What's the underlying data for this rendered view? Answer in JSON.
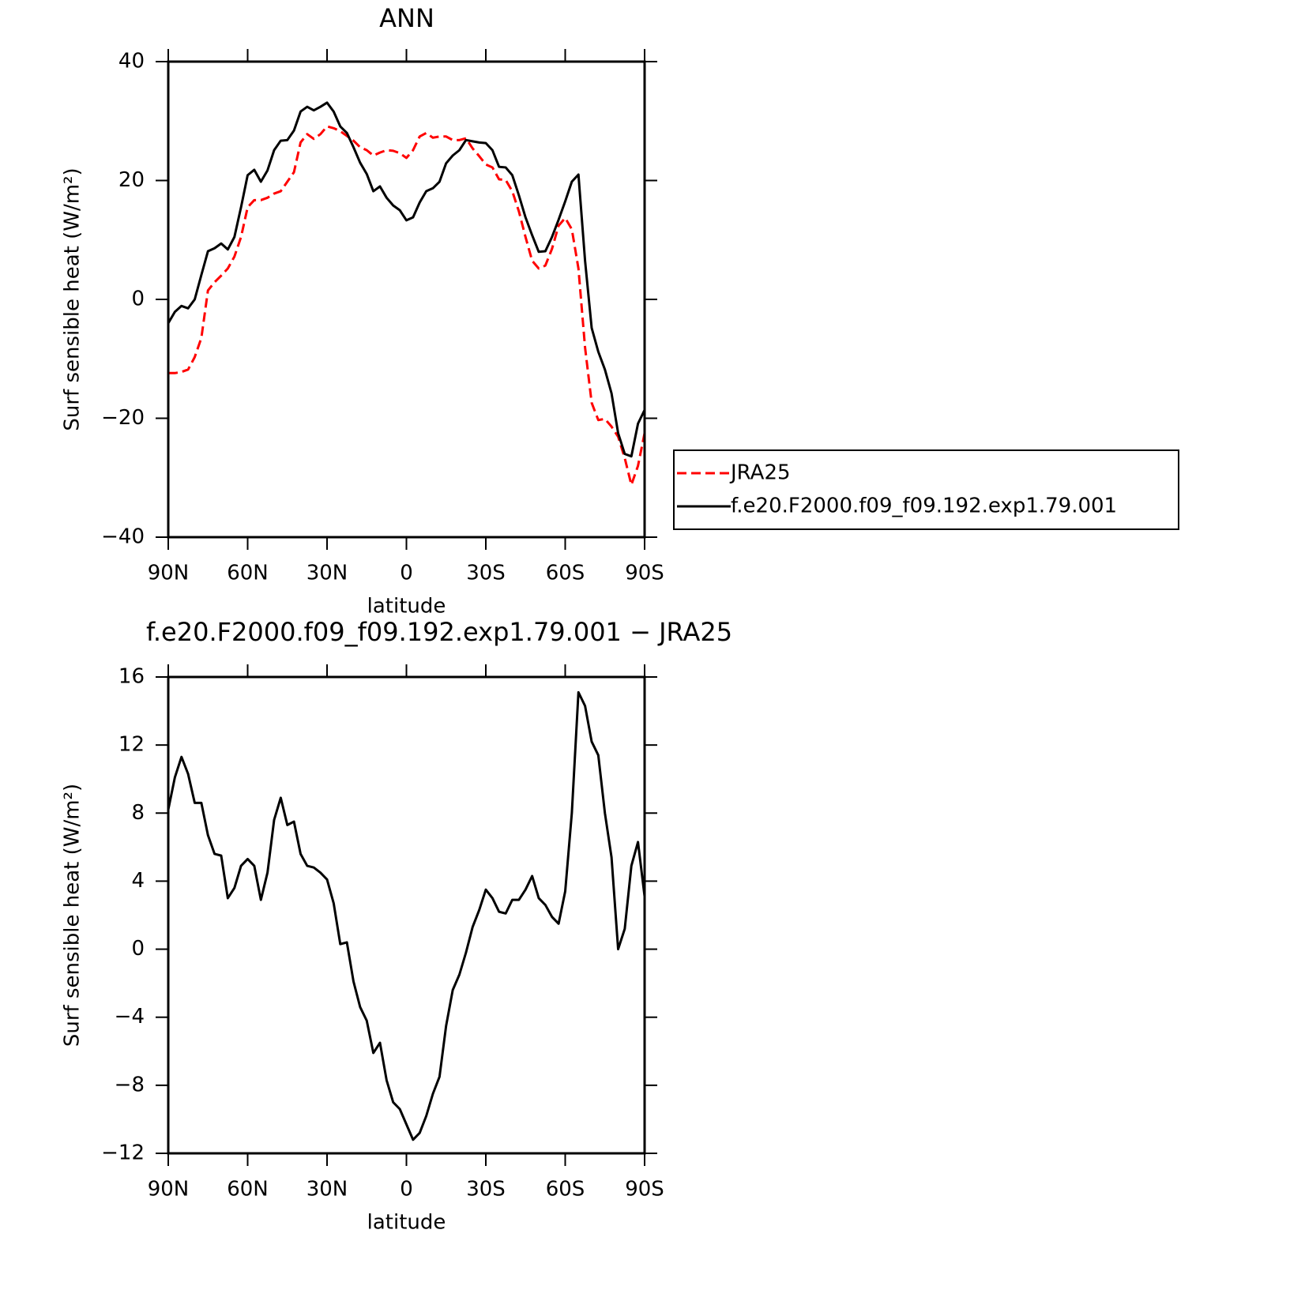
{
  "chart_data": [
    {
      "type": "line",
      "title": "ANN",
      "x_label": "latitude",
      "y_label": "Surf sensible heat (W/m²)",
      "x": [
        90,
        87.5,
        85,
        82.5,
        80,
        77.5,
        75,
        72.5,
        70,
        67.5,
        65,
        62.5,
        60,
        57.5,
        55,
        52.5,
        50,
        47.5,
        45,
        42.5,
        40,
        37.5,
        35,
        32.5,
        30,
        27.5,
        25,
        22.5,
        20,
        17.5,
        15,
        12.5,
        10,
        7.5,
        5,
        2.5,
        0,
        -2.5,
        -5,
        -7.5,
        -10,
        -12.5,
        -15,
        -17.5,
        -20,
        -22.5,
        -25,
        -27.5,
        -30,
        -32.5,
        -35,
        -37.5,
        -40,
        -42.5,
        -45,
        -47.5,
        -50,
        -52.5,
        -55,
        -57.5,
        -60,
        -62.5,
        -65,
        -67.5,
        -70,
        -72.5,
        -75,
        -77.5,
        -80,
        -82.5,
        -85,
        -87.5,
        -90
      ],
      "xlim": [
        90,
        -90
      ],
      "xticks": [
        {
          "value": 90,
          "label": "90N"
        },
        {
          "value": 60,
          "label": "60N"
        },
        {
          "value": 30,
          "label": "30N"
        },
        0,
        {
          "value": -30,
          "label": "30S"
        },
        {
          "value": -60,
          "label": "60S"
        },
        {
          "value": -90,
          "label": "90S"
        }
      ],
      "ylim": [
        -40,
        40
      ],
      "yticks": [
        {
          "value": -40,
          "label": "−40"
        },
        {
          "value": -20,
          "label": "−20"
        },
        0,
        20,
        40
      ],
      "legend": "outside-right",
      "series": [
        {
          "name": "JRA25",
          "color": "#ff0000",
          "dash": true,
          "values": [
            -12.4,
            -12.4,
            -12.2,
            -11.8,
            -9.7,
            -6.5,
            1.5,
            2.9,
            4.0,
            5.2,
            7.2,
            10.5,
            15.5,
            16.7,
            16.7,
            17.1,
            17.8,
            18.2,
            19.8,
            21.4,
            26.4,
            27.8,
            27.0,
            27.8,
            29.1,
            28.8,
            28.3,
            27.5,
            26.7,
            25.6,
            25.1,
            24.2,
            24.7,
            25.1,
            25.0,
            24.6,
            23.8,
            25.1,
            27.4,
            28.0,
            27.2,
            27.4,
            27.4,
            26.8,
            26.8,
            27.1,
            25.4,
            24.1,
            22.7,
            22.2,
            20.2,
            20.1,
            18.2,
            14.8,
            10.5,
            6.5,
            5.2,
            5.7,
            8.5,
            12.4,
            13.7,
            11.8,
            5.2,
            -8.1,
            -17.4,
            -20.3,
            -20.1,
            -21.4,
            -23.1,
            -26.7,
            -31.2,
            -28.0,
            -22.5
          ]
        },
        {
          "name": "f.e20.F2000.f09_f09.192.exp1.79.001",
          "color": "#000000",
          "dash": false,
          "values": [
            -4.0,
            -2.1,
            -1.1,
            -1.5,
            0,
            4.1,
            8.1,
            8.6,
            9.4,
            8.4,
            10.5,
            15.5,
            20.9,
            21.8,
            19.8,
            21.7,
            25.1,
            26.7,
            26.8,
            28.4,
            31.6,
            32.4,
            31.8,
            32.4,
            33.1,
            31.6,
            29.1,
            28.0,
            25.6,
            23.0,
            21.1,
            18.2,
            19.0,
            17.1,
            15.8,
            15.0,
            13.3,
            13.8,
            16.3,
            18.2,
            18.7,
            19.8,
            22.9,
            24.2,
            25.1,
            26.8,
            26.6,
            26.4,
            26.3,
            25.1,
            22.3,
            22.2,
            20.9,
            17.5,
            13.8,
            10.8,
            8.0,
            8.1,
            10.5,
            13.4,
            16.5,
            19.8,
            21.0,
            6.5,
            -4.8,
            -8.8,
            -11.8,
            -15.8,
            -22.5,
            -26.0,
            -26.4,
            -20.9,
            -18.6
          ]
        }
      ]
    },
    {
      "type": "line",
      "title": "f.e20.F2000.f09_f09.192.exp1.79.001 − JRA25",
      "x_label": "latitude",
      "y_label": "Surf sensible heat (W/m²)",
      "x": [
        90,
        87.5,
        85,
        82.5,
        80,
        77.5,
        75,
        72.5,
        70,
        67.5,
        65,
        62.5,
        60,
        57.5,
        55,
        52.5,
        50,
        47.5,
        45,
        42.5,
        40,
        37.5,
        35,
        32.5,
        30,
        27.5,
        25,
        22.5,
        20,
        17.5,
        15,
        12.5,
        10,
        7.5,
        5,
        2.5,
        0,
        -2.5,
        -5,
        -7.5,
        -10,
        -12.5,
        -15,
        -17.5,
        -20,
        -22.5,
        -25,
        -27.5,
        -30,
        -32.5,
        -35,
        -37.5,
        -40,
        -42.5,
        -45,
        -47.5,
        -50,
        -52.5,
        -55,
        -57.5,
        -60,
        -62.5,
        -65,
        -67.5,
        -70,
        -72.5,
        -75,
        -77.5,
        -80,
        -82.5,
        -85,
        -87.5,
        -90
      ],
      "xlim": [
        90,
        -90
      ],
      "xticks": [
        {
          "value": 90,
          "label": "90N"
        },
        {
          "value": 60,
          "label": "60N"
        },
        {
          "value": 30,
          "label": "30N"
        },
        0,
        {
          "value": -30,
          "label": "30S"
        },
        {
          "value": -60,
          "label": "60S"
        },
        {
          "value": -90,
          "label": "90S"
        }
      ],
      "ylim": [
        -12,
        16
      ],
      "yticks": [
        {
          "value": -12,
          "label": "−12"
        },
        {
          "value": -8,
          "label": "−8"
        },
        {
          "value": -4,
          "label": "−4"
        },
        0,
        4,
        8,
        12,
        16
      ],
      "series": [
        {
          "color": "#000000",
          "dash": false,
          "values": [
            8.2,
            10.1,
            11.3,
            10.3,
            8.6,
            8.6,
            6.7,
            5.6,
            5.5,
            3.0,
            3.6,
            4.9,
            5.3,
            4.9,
            2.9,
            4.5,
            7.6,
            8.9,
            7.3,
            7.5,
            5.6,
            4.9,
            4.8,
            4.5,
            4.1,
            2.7,
            0.3,
            0.4,
            -1.9,
            -3.4,
            -4.2,
            -6.1,
            -5.5,
            -7.7,
            -9.0,
            -9.4,
            -10.3,
            -11.2,
            -10.8,
            -9.8,
            -8.5,
            -7.5,
            -4.5,
            -2.4,
            -1.5,
            -0.2,
            1.3,
            2.3,
            3.5,
            3.0,
            2.2,
            2.1,
            2.9,
            2.9,
            3.5,
            4.3,
            3.0,
            2.6,
            1.9,
            1.5,
            3.4,
            8.0,
            15.1,
            14.3,
            12.2,
            11.4,
            8.0,
            5.4,
            0.0,
            1.2,
            4.9,
            6.3,
            3.1
          ]
        }
      ]
    }
  ]
}
